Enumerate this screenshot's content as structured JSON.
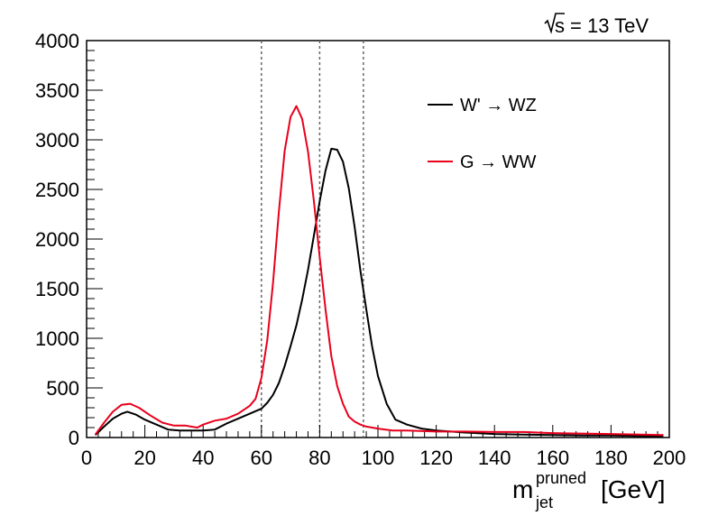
{
  "chart_data": {
    "type": "line",
    "title": "",
    "energy_label": {
      "sqrt_symbol": "√",
      "s": "s",
      "value": "=  13 TeV"
    },
    "xlabel": {
      "base": "m",
      "superscript": "pruned",
      "subscript": "jet",
      "unit": "[GeV]"
    },
    "ylabel": "",
    "xlim": [
      0,
      200
    ],
    "ylim": [
      0,
      4000
    ],
    "x_ticks": [
      0,
      20,
      40,
      60,
      80,
      100,
      120,
      140,
      160,
      180,
      200
    ],
    "y_ticks": [
      0,
      500,
      1000,
      1500,
      2000,
      2500,
      3000,
      3500,
      4000
    ],
    "grid": false,
    "legend_position": "top-right",
    "vertical_reference_lines": [
      60,
      80,
      95
    ],
    "series": [
      {
        "name": "W' → WZ",
        "color": "#000000",
        "x": [
          3,
          6,
          9,
          12,
          14,
          17,
          20,
          24,
          28,
          32,
          36,
          40,
          44,
          48,
          52,
          56,
          60,
          62,
          64,
          66,
          68,
          70,
          72,
          74,
          76,
          78,
          80,
          82,
          84,
          86,
          88,
          90,
          92,
          94,
          96,
          98,
          100,
          103,
          106,
          110,
          115,
          120,
          130,
          140,
          150,
          160,
          170,
          180,
          190,
          198
        ],
        "values": [
          25,
          110,
          190,
          240,
          260,
          230,
          180,
          130,
          80,
          70,
          70,
          70,
          80,
          140,
          190,
          240,
          290,
          350,
          430,
          550,
          720,
          920,
          1130,
          1390,
          1690,
          2030,
          2380,
          2690,
          2910,
          2900,
          2780,
          2510,
          2120,
          1680,
          1290,
          920,
          620,
          340,
          180,
          130,
          90,
          70,
          50,
          35,
          30,
          25,
          20,
          20,
          15,
          15
        ]
      },
      {
        "name": "G → WW",
        "color": "#e8001c",
        "x": [
          3,
          6,
          9,
          12,
          15,
          18,
          22,
          26,
          30,
          34,
          38,
          40,
          44,
          48,
          52,
          56,
          58,
          60,
          62,
          64,
          66,
          68,
          70,
          72,
          74,
          76,
          78,
          80,
          82,
          84,
          86,
          88,
          90,
          92,
          94,
          96,
          100,
          105,
          110,
          120,
          130,
          140,
          150,
          160,
          170,
          180,
          190,
          198
        ],
        "values": [
          30,
          150,
          260,
          330,
          340,
          300,
          220,
          150,
          120,
          120,
          100,
          130,
          170,
          190,
          240,
          320,
          390,
          600,
          980,
          1560,
          2280,
          2890,
          3230,
          3340,
          3210,
          2880,
          2390,
          1820,
          1290,
          820,
          520,
          340,
          210,
          160,
          130,
          110,
          90,
          70,
          70,
          60,
          60,
          55,
          55,
          45,
          40,
          35,
          30,
          25
        ]
      }
    ]
  }
}
